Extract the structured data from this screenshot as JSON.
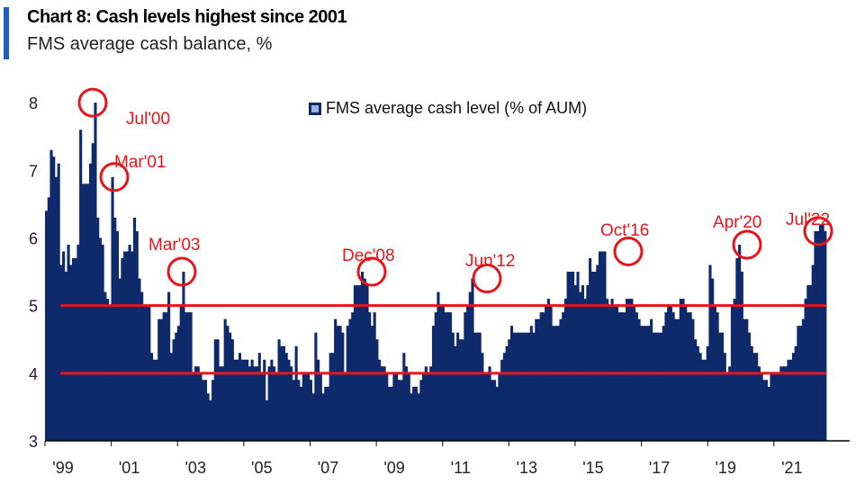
{
  "header": {
    "title": "Chart 8: Cash levels highest since 2001",
    "subtitle": "FMS average cash balance, %",
    "accent_color": "#1f5dbe"
  },
  "colors": {
    "bar": "#0f2a6b",
    "annotation": "#e8141b",
    "axis": "#000000"
  },
  "chart_data": {
    "type": "bar",
    "title": "Chart 8: Cash levels highest since 2001",
    "subtitle": "FMS average cash balance, %",
    "xlabel": "",
    "ylabel": "",
    "ylim": [
      3,
      8.4
    ],
    "yticks": [
      3,
      4,
      5,
      6,
      7,
      8
    ],
    "legend": {
      "label": "FMS average cash level (% of AUM)",
      "position": "top-center"
    },
    "x_start": 1999.0,
    "x_end": 2022.58,
    "xticks": [
      {
        "year": 1999,
        "label": "'99"
      },
      {
        "year": 2001,
        "label": "'01"
      },
      {
        "year": 2003,
        "label": "'03"
      },
      {
        "year": 2005,
        "label": "'05"
      },
      {
        "year": 2007,
        "label": "'07"
      },
      {
        "year": 2009,
        "label": "'09"
      },
      {
        "year": 2011,
        "label": "'11"
      },
      {
        "year": 2013,
        "label": "'13"
      },
      {
        "year": 2015,
        "label": "'15"
      },
      {
        "year": 2017,
        "label": "'17"
      },
      {
        "year": 2019,
        "label": "'19"
      },
      {
        "year": 2021,
        "label": "'21"
      }
    ],
    "reference_lines": [
      5,
      4
    ],
    "values": [
      6.4,
      6.6,
      7.3,
      7.2,
      6.9,
      7.1,
      5.6,
      5.8,
      5.5,
      5.9,
      5.6,
      5.7,
      5.7,
      5.9,
      7.6,
      6.8,
      6.8,
      6.8,
      7.1,
      7.4,
      8.0,
      6.3,
      6.0,
      5.9,
      5.2,
      5.1,
      5.0,
      6.9,
      6.3,
      6.1,
      5.4,
      5.7,
      5.8,
      5.8,
      5.9,
      5.8,
      6.3,
      6.1,
      5.4,
      5.2,
      5.0,
      5.0,
      5.0,
      4.3,
      4.2,
      4.2,
      4.8,
      4.8,
      4.9,
      4.9,
      5.2,
      4.3,
      4.5,
      4.6,
      4.7,
      5.0,
      5.5,
      4.9,
      4.9,
      4.9,
      4.0,
      4.1,
      4.1,
      4.0,
      3.9,
      3.9,
      3.7,
      3.6,
      3.9,
      4.5,
      4.5,
      4.1,
      4.1,
      4.8,
      4.7,
      4.6,
      4.5,
      4.2,
      4.2,
      4.3,
      4.2,
      4.2,
      4.2,
      4.1,
      4.2,
      4.1,
      4.1,
      4.3,
      4.0,
      4.2,
      3.6,
      4.1,
      4.2,
      4.1,
      4.0,
      4.5,
      4.4,
      4.4,
      4.3,
      4.2,
      4.1,
      3.9,
      4.4,
      3.9,
      3.8,
      4.0,
      4.0,
      4.0,
      3.9,
      3.7,
      4.6,
      4.2,
      4.0,
      3.7,
      3.8,
      3.8,
      4.3,
      4.3,
      4.8,
      4.7,
      4.7,
      4.6,
      4.0,
      4.7,
      4.8,
      4.9,
      5.3,
      5.3,
      5.3,
      5.5,
      5.4,
      5.3,
      4.9,
      4.7,
      4.9,
      4.5,
      4.2,
      4.1,
      4.1,
      4.0,
      3.8,
      3.8,
      4.0,
      4.0,
      3.9,
      3.9,
      4.3,
      4.1,
      4.0,
      3.7,
      3.8,
      3.8,
      3.7,
      3.9,
      4.0,
      4.1,
      4.0,
      4.1,
      4.7,
      4.9,
      5.2,
      5.0,
      5.0,
      4.9,
      4.9,
      4.9,
      4.6,
      4.4,
      4.6,
      4.5,
      4.5,
      4.9,
      5.0,
      5.2,
      5.4,
      4.6,
      4.6,
      4.6,
      4.3,
      4.0,
      4.0,
      4.1,
      3.9,
      3.9,
      3.8,
      4.0,
      4.2,
      4.3,
      4.4,
      4.5,
      4.7,
      4.6,
      4.6,
      4.6,
      4.6,
      4.6,
      4.6,
      4.6,
      4.7,
      4.6,
      4.8,
      4.8,
      4.9,
      4.9,
      5.0,
      5.1,
      5.0,
      4.7,
      4.7,
      4.7,
      4.8,
      4.9,
      5.1,
      5.5,
      5.5,
      5.5,
      5.3,
      5.5,
      5.2,
      5.3,
      5.1,
      5.3,
      5.7,
      5.5,
      5.5,
      5.6,
      5.8,
      5.8,
      5.8,
      5.1,
      5.0,
      5.1,
      5.0,
      5.0,
      4.9,
      4.9,
      4.9,
      5.1,
      5.1,
      5.1,
      5.0,
      4.9,
      4.8,
      4.7,
      4.7,
      4.7,
      4.7,
      4.8,
      4.6,
      4.6,
      4.6,
      4.6,
      4.7,
      4.9,
      5.0,
      5.0,
      4.9,
      4.8,
      4.8,
      5.1,
      5.1,
      5.0,
      4.9,
      4.9,
      4.8,
      4.5,
      4.4,
      4.3,
      4.2,
      4.2,
      4.4,
      5.6,
      5.4,
      5.0,
      4.9,
      4.6,
      4.6,
      4.3,
      4.0,
      4.1,
      5.0,
      5.1,
      5.7,
      5.9,
      5.5,
      4.8,
      4.8,
      4.6,
      4.4,
      4.3,
      4.3,
      4.1,
      4.0,
      3.9,
      3.9,
      3.8,
      4.0,
      4.0,
      4.0,
      4.0,
      4.1,
      4.1,
      4.1,
      4.2,
      4.2,
      4.3,
      4.4,
      4.7,
      4.7,
      4.8,
      5.1,
      5.3,
      5.3,
      5.6,
      6.1,
      6.1,
      6.2,
      6.2,
      6.1
    ],
    "annotations": [
      {
        "label": "Jul'00",
        "value": 8.0
      },
      {
        "label": "Mar'01",
        "value": 6.9
      },
      {
        "label": "Mar'03",
        "value": 5.5
      },
      {
        "label": "Dec'08",
        "value": 5.5
      },
      {
        "label": "Jun'12",
        "value": 5.4
      },
      {
        "label": "Oct'16",
        "value": 5.8
      },
      {
        "label": "Apr'20",
        "value": 5.9
      },
      {
        "label": "Jul'22",
        "value": 6.1
      }
    ]
  }
}
